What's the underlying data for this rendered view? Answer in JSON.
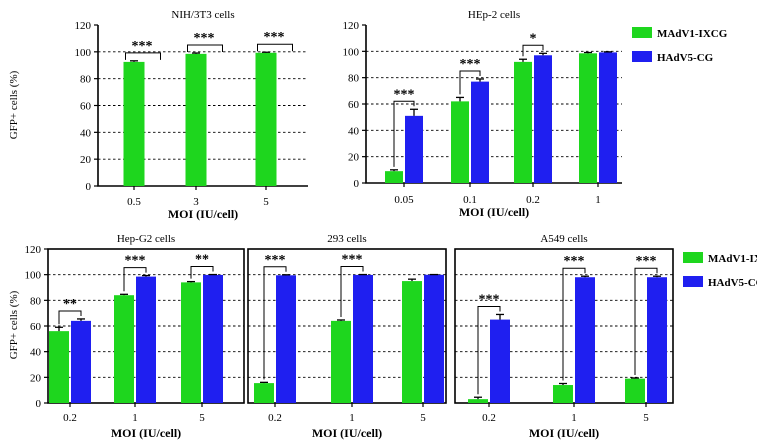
{
  "legend": [
    {
      "name": "MAdV1-IXCG",
      "color": "#1ed61e"
    },
    {
      "name": "HAdV5-CG",
      "color": "#1f1ff0"
    }
  ],
  "chart_data": [
    {
      "type": "bar",
      "title": "NIH/3T3 cells",
      "xlabel": "MOI (IU/cell)",
      "ylabel": "GFP+ cells (%)",
      "ylim": [
        0,
        120
      ],
      "yticks": [
        0,
        20,
        40,
        60,
        80,
        100,
        120
      ],
      "categories": [
        "0.5",
        "3",
        "5"
      ],
      "series": [
        {
          "name": "MAdV1-IXCG",
          "values": [
            92.5,
            98.5,
            99.3
          ],
          "errors": [
            0.8,
            0.6,
            0.4
          ]
        }
      ],
      "annotations": [
        {
          "category": "0.5",
          "text": "***"
        },
        {
          "category": "3",
          "text": "***"
        },
        {
          "category": "5",
          "text": "***"
        }
      ]
    },
    {
      "type": "bar",
      "title": "HEp-2 cells",
      "xlabel": "MOI (IU/cell)",
      "ylabel": "",
      "ylim": [
        0,
        120
      ],
      "yticks": [
        0,
        20,
        40,
        60,
        80,
        100,
        120
      ],
      "categories": [
        "0.05",
        "0.1",
        "0.2",
        "1"
      ],
      "series": [
        {
          "name": "MAdV1-IXCG",
          "values": [
            9,
            62,
            92,
            98.5
          ],
          "errors": [
            1.0,
            3.0,
            2.0,
            0.6
          ]
        },
        {
          "name": "HAdV5-CG",
          "values": [
            51,
            77,
            97,
            99.2
          ],
          "errors": [
            5.0,
            2.0,
            1.5,
            0.4
          ]
        }
      ],
      "annotations": [
        {
          "category": "0.05",
          "text": "***"
        },
        {
          "category": "0.1",
          "text": "***"
        },
        {
          "category": "0.2",
          "text": "*"
        }
      ]
    },
    {
      "type": "bar",
      "title": "Hep-G2 cells",
      "xlabel": "MOI (IU/cell)",
      "ylabel": "GFP+ cells (%)",
      "ylim": [
        0,
        120
      ],
      "yticks": [
        0,
        20,
        40,
        60,
        80,
        100,
        120
      ],
      "categories": [
        "0.2",
        "1",
        "5"
      ],
      "series": [
        {
          "name": "MAdV1-IXCG",
          "values": [
            56,
            84,
            94
          ],
          "errors": [
            3.0,
            0.7,
            0.6
          ]
        },
        {
          "name": "HAdV5-CG",
          "values": [
            64,
            98.5,
            99.8
          ],
          "errors": [
            1.5,
            0.8,
            0.3
          ]
        }
      ],
      "annotations": [
        {
          "category": "0.2",
          "text": "**"
        },
        {
          "category": "1",
          "text": "***"
        },
        {
          "category": "5",
          "text": "**"
        }
      ]
    },
    {
      "type": "bar",
      "title": "293 cells",
      "xlabel": "MOI (IU/cell)",
      "ylabel": "",
      "ylim": [
        0,
        120
      ],
      "yticks": [],
      "categories": [
        "0.2",
        "1",
        "5"
      ],
      "series": [
        {
          "name": "MAdV1-IXCG",
          "values": [
            15.5,
            64,
            95
          ],
          "errors": [
            0.6,
            0.7,
            1.5
          ]
        },
        {
          "name": "HAdV5-CG",
          "values": [
            99.5,
            99.8,
            99.9
          ],
          "errors": [
            0.4,
            0.3,
            0.2
          ]
        }
      ],
      "annotations": [
        {
          "category": "0.2",
          "text": "***"
        },
        {
          "category": "1",
          "text": "***"
        }
      ]
    },
    {
      "type": "bar",
      "title": "A549 cells",
      "xlabel": "MOI (IU/cell)",
      "ylabel": "",
      "ylim": [
        0,
        120
      ],
      "yticks": [],
      "categories": [
        "0.2",
        "1",
        "5"
      ],
      "series": [
        {
          "name": "MAdV1-IXCG",
          "values": [
            3,
            14,
            19
          ],
          "errors": [
            1.5,
            1.2,
            0.5
          ]
        },
        {
          "name": "HAdV5-CG",
          "values": [
            65,
            98,
            98
          ],
          "errors": [
            4.0,
            0.8,
            0.8
          ]
        }
      ],
      "annotations": [
        {
          "category": "0.2",
          "text": "***"
        },
        {
          "category": "1",
          "text": "***"
        },
        {
          "category": "5",
          "text": "***"
        }
      ]
    }
  ]
}
